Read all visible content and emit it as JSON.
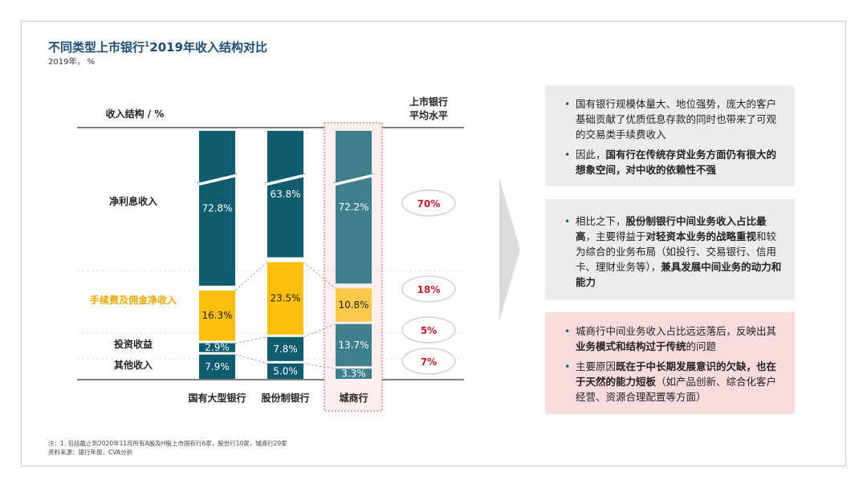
{
  "page": {
    "title_main": "不同类型上市银行",
    "title_sup": "1",
    "title_rest": "2019年收入结构对比",
    "subtitle": "2019年， %"
  },
  "chart_data": {
    "type": "bar",
    "stacked": true,
    "ylabel_header": "收入结构 / %",
    "avg_header_line1": "上市银行",
    "avg_header_line2": "平均水平",
    "categories": [
      "国有大型银行",
      "股份制银行",
      "城商行"
    ],
    "series": [
      {
        "name": "净利息收入",
        "values": [
          72.8,
          63.8,
          72.2
        ],
        "labels": [
          "72.8%",
          "63.8%",
          "72.2%"
        ],
        "avg": "70%",
        "color": "#0e5c6e"
      },
      {
        "name": "手续费及佣金净收入",
        "values": [
          16.3,
          23.5,
          10.8
        ],
        "labels": [
          "16.3%",
          "23.5%",
          "10.8%"
        ],
        "avg": "18%",
        "color": "#fbbf0b"
      },
      {
        "name": "投资收益",
        "values": [
          2.9,
          7.8,
          13.7
        ],
        "labels": [
          "2.9%",
          "7.8%",
          "13.7%"
        ],
        "avg": "5%",
        "color": "#0e5c6e"
      },
      {
        "name": "其他收入",
        "values": [
          7.9,
          5.0,
          3.3
        ],
        "labels": [
          "7.9%",
          "5.0%",
          "3.3%"
        ],
        "avg": "7%",
        "color": "#0e5c6e"
      }
    ],
    "highlight_category": "城商行",
    "axis_break": true,
    "colors": {
      "teal": "#0e5c6e",
      "teal_light": "#3e7f8c",
      "yellow": "#fbbf0b",
      "yellow_light": "#fbc94a",
      "red": "#c0202b",
      "highlight_border": "#e07070"
    }
  },
  "insights": {
    "b1": {
      "p1": "国有银行规模体量大、地位强势，庞大的客户基础贡献了优质低息存款的同时也带来了可观的交易类手续费收入",
      "p2_a": "因此，",
      "p2_b": "国有行在传统存贷业务方面仍有很大的想象空间，对中收的依赖性不强"
    },
    "b2": {
      "a": "相比之下，",
      "b": "股份制银行中间业务收入占比最高",
      "c": "，主要得益于",
      "d": "对轻资本业务的战略重视",
      "e": "和较为综合的业务布局（如投行、交易银行、信用卡、理财业务等），",
      "f": "兼具发展中间业务的动力和能力"
    },
    "b3": {
      "p1_a": "城商行中间业务收入占比远远落后，反映出其",
      "p1_b": "业务模式和结构过于传统",
      "p1_c": "的问题",
      "p2_a": "主要原因",
      "p2_b": "既在于中长期发展意识的欠缺，也在于天然的能力短板",
      "p2_c": "（如产品创新、综合化客户经营、资源合理配置等方面）"
    }
  },
  "notes": {
    "line1": "注：1. 包括截止到2020年11月所有A股及H股上市国有行6家，股份行10家，城商行29家",
    "line2": "资料来源：银行年报，CVA分析"
  }
}
